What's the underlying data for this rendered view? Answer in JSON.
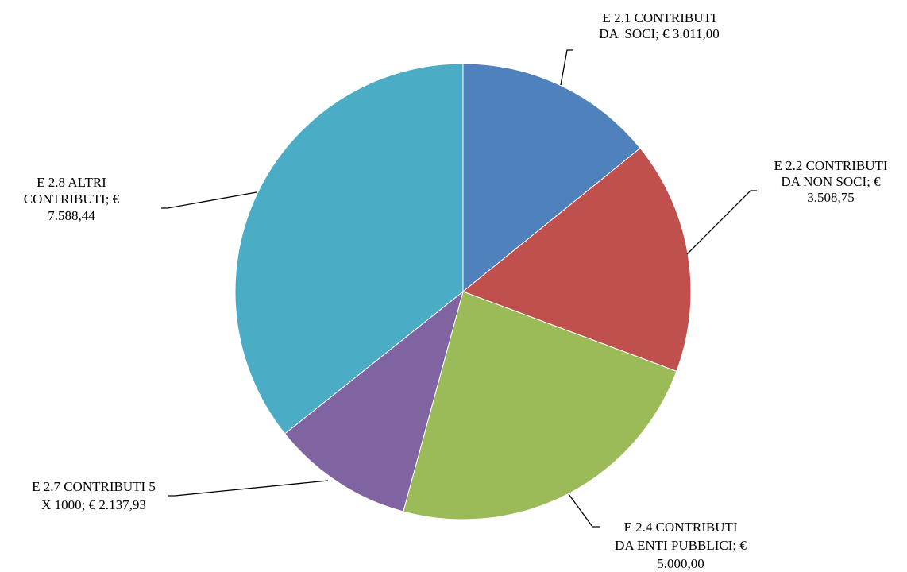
{
  "chart_data": {
    "type": "pie",
    "start_angle_deg": 0,
    "direction": "clockwise",
    "legend": "none",
    "slices": [
      {
        "category": "E 2.1 CONTRIBUTI DA  SOCI",
        "value": 3011.0,
        "value_label": "€ 3.011,00",
        "label_lines": [
          "E 2.1 CONTRIBUTI",
          "DA  SOCI; € 3.011,00"
        ],
        "color": "#4F81BD"
      },
      {
        "category": "E 2.2 CONTRIBUTI DA NON SOCI",
        "value": 3508.75,
        "value_label": "€ 3.508,75",
        "label_lines": [
          "E 2.2 CONTRIBUTI",
          "DA NON SOCI; €",
          "3.508,75"
        ],
        "color": "#C0504D"
      },
      {
        "category": "E 2.4 CONTRIBUTI DA ENTI PUBBLICI",
        "value": 5000.0,
        "value_label": "€ 5.000,00",
        "label_lines": [
          "E 2.4 CONTRIBUTI",
          "DA ENTI PUBBLICI; €",
          "5.000,00"
        ],
        "color": "#9BBB59"
      },
      {
        "category": "E 2.7 CONTRIBUTI 5 X 1000",
        "value": 2137.93,
        "value_label": "€ 2.137,93",
        "label_lines": [
          "E 2.7 CONTRIBUTI 5",
          "X 1000; € 2.137,93"
        ],
        "color": "#8064A2"
      },
      {
        "category": "E 2.8 ALTRI CONTRIBUTI",
        "value": 7588.44,
        "value_label": "€ 7.588,44",
        "label_lines": [
          "E 2.8 ALTRI",
          "CONTRIBUTI; €",
          "7.588,44"
        ],
        "color": "#4BACC6"
      }
    ]
  }
}
